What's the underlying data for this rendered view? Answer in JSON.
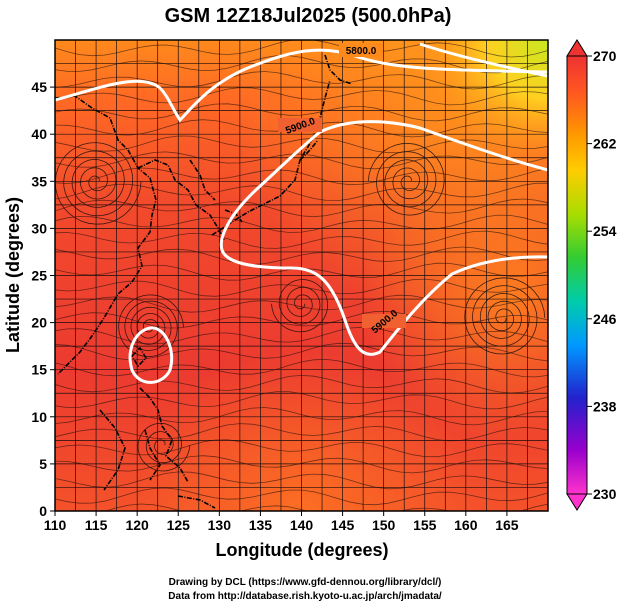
{
  "title": "GSM 12Z18Jul2025 (500.0hPa)",
  "xlabel": "Longitude (degrees)",
  "ylabel": "Latitude  (degrees)",
  "credits": [
    "Drawing by DCL (https://www.gfd-dennou.org/library/dcl/)",
    "Data from http://database.rish.kyoto-u.ac.jp/arch/jmadata/"
  ],
  "map": {
    "lon_range": [
      110,
      170
    ],
    "lat_range": [
      0,
      50
    ],
    "lon_ticks": [
      110,
      115,
      120,
      125,
      130,
      135,
      140,
      145,
      150,
      155,
      160,
      165
    ],
    "lat_ticks": [
      0,
      5,
      10,
      15,
      20,
      25,
      30,
      35,
      40,
      45
    ],
    "grid": true,
    "field": "500 hPa temperature (K), streamlines, geopotential height contours"
  },
  "colorbar": {
    "ticks": [
      "230",
      "238",
      "246",
      "254",
      "262",
      "270"
    ],
    "min": 230,
    "max": 270,
    "colors": [
      "#ff33cc",
      "#9900cc",
      "#2222cc",
      "#0099ff",
      "#00ccaa",
      "#33cc33",
      "#aadd00",
      "#ffcc00",
      "#ff9900",
      "#ff5522",
      "#ee3333"
    ]
  },
  "contours": {
    "labels": [
      "5900.0",
      "5900.0",
      "5800.0",
      "5900.0"
    ],
    "line_color": "#ffffff"
  }
}
